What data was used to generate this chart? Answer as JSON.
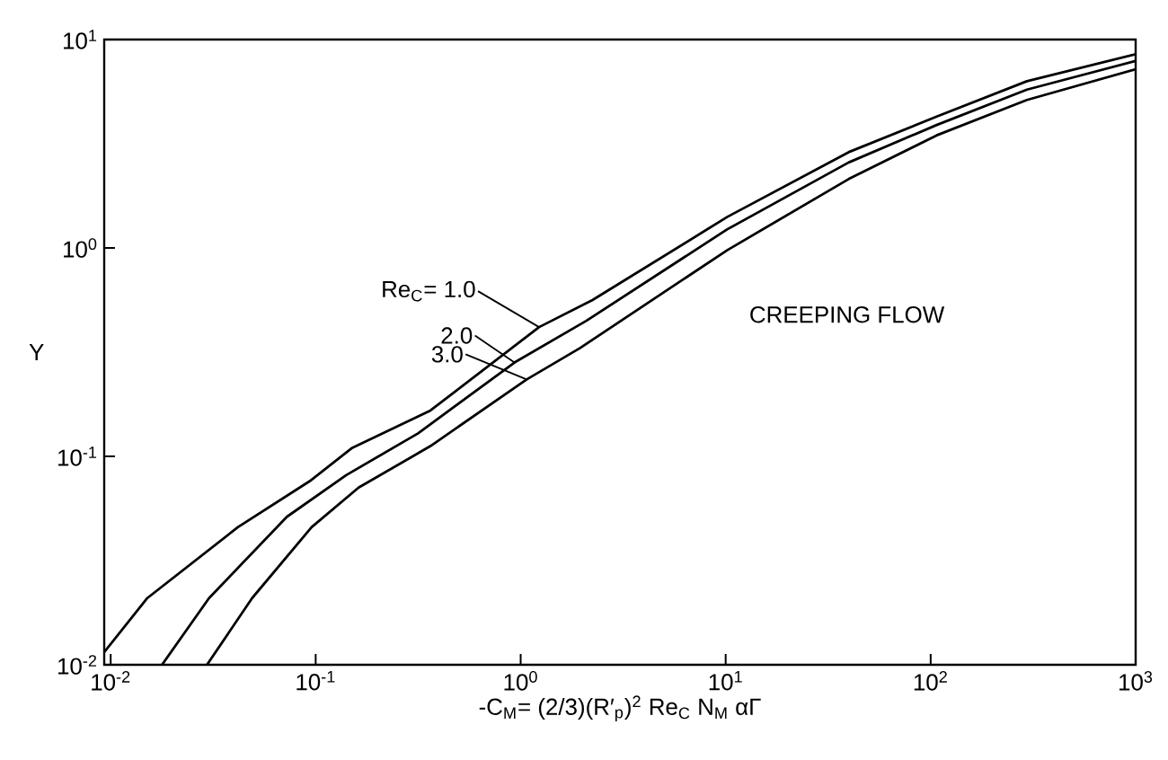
{
  "chart_data": {
    "type": "line",
    "xlabel": "-C$_{M}$= (2/3)(R′$_{p}$)$^{2}$ Re$_{C}$ N$_{M}$ αΓ",
    "ylabel": "Y",
    "log": "xy",
    "grid": false,
    "legend": "left",
    "marker": "none",
    "line_style": "solid",
    "xlim": [
      0.0093,
      1000
    ],
    "ylim": [
      0.01,
      10
    ],
    "xticks": [
      {
        "value": 0.01,
        "label": "10$^{-2}$"
      },
      {
        "value": 0.1,
        "label": "10$^{-1}$"
      },
      {
        "value": 1,
        "label": "10$^{0}$"
      },
      {
        "value": 10,
        "label": "10$^{1}$"
      },
      {
        "value": 100,
        "label": "10$^{2}$"
      },
      {
        "value": 1000,
        "label": "10$^{3}$"
      }
    ],
    "yticks": [
      {
        "value": 0.01,
        "label": "10$^{-2}$"
      },
      {
        "value": 0.1,
        "label": "10$^{-1}$"
      },
      {
        "value": 1,
        "label": "10$^{0}$"
      },
      {
        "value": 10,
        "label": "10$^{1}$"
      }
    ],
    "annotations": [
      "CREEPING FLOW"
    ],
    "series": [
      {
        "name": "Re$_{C}$= 1.0",
        "color": "#000000",
        "x": [
          0.0093,
          0.0151,
          0.0417,
          0.0933,
          0.151,
          0.363,
          1.23,
          2.24,
          10.2,
          39.8,
          107,
          295,
          1000
        ],
        "values": [
          0.0115,
          0.0209,
          0.0457,
          0.0759,
          0.11,
          0.166,
          0.417,
          0.562,
          1.41,
          2.88,
          4.27,
          6.31,
          8.5
        ]
      },
      {
        "name": "2.0",
        "color": "#000000",
        "x": [
          0.0178,
          0.0302,
          0.0724,
          0.141,
          0.316,
          0.933,
          2.09,
          10.2,
          39.8,
          107,
          295,
          1000
        ],
        "values": [
          0.01,
          0.0209,
          0.0513,
          0.0813,
          0.129,
          0.282,
          0.447,
          1.23,
          2.57,
          3.89,
          5.75,
          7.9
        ]
      },
      {
        "name": "3.0",
        "color": "#000000",
        "x": [
          0.0295,
          0.049,
          0.0955,
          0.162,
          0.363,
          1.07,
          1.95,
          10.2,
          39.8,
          107,
          295,
          1000
        ],
        "values": [
          0.01,
          0.0209,
          0.0457,
          0.0708,
          0.112,
          0.234,
          0.331,
          0.977,
          2.14,
          3.47,
          5.13,
          7.2
        ]
      }
    ]
  }
}
